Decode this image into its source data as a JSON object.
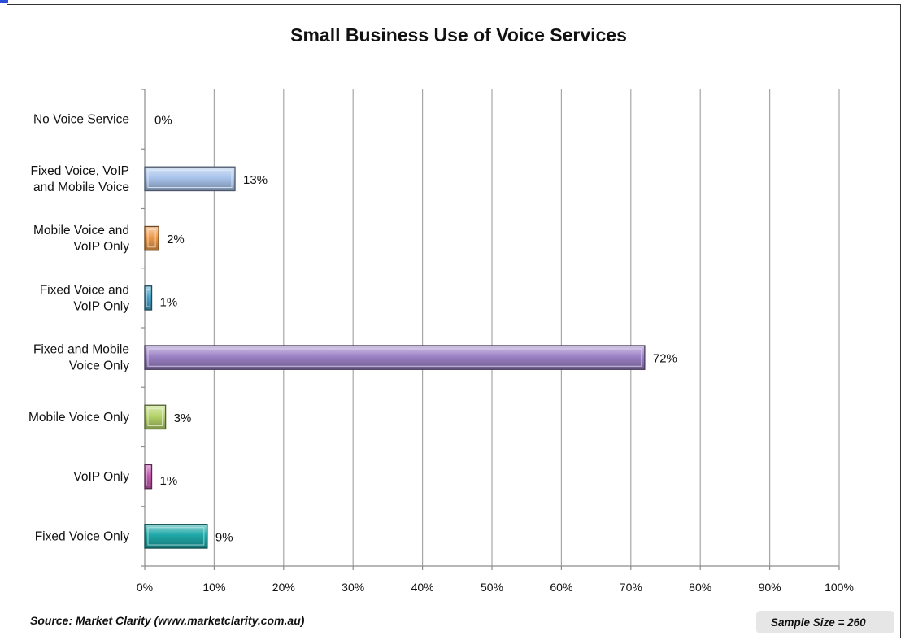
{
  "chart_data": {
    "type": "bar",
    "orientation": "horizontal",
    "title": "Small Business Use of Voice Services",
    "categories": [
      [
        "No Voice Service"
      ],
      [
        "Fixed Voice, VoIP",
        "and Mobile Voice"
      ],
      [
        "Mobile Voice and",
        "VoIP Only"
      ],
      [
        "Fixed Voice and",
        "VoIP Only"
      ],
      [
        "Fixed and Mobile",
        "Voice Only"
      ],
      [
        "Mobile Voice Only"
      ],
      [
        "VoIP Only"
      ],
      [
        "Fixed Voice Only"
      ]
    ],
    "values": [
      0,
      13,
      2,
      1,
      72,
      3,
      1,
      9
    ],
    "data_labels": [
      "0%",
      "13%",
      "2%",
      "1%",
      "72%",
      "3%",
      "1%",
      "9%"
    ],
    "bar_colors": [
      "#9dc3e6",
      "#a9c4ec",
      "#ef9a4a",
      "#4aa3c8",
      "#9c82c6",
      "#b5d46a",
      "#c45ab0",
      "#1fa8a8"
    ],
    "xlim": [
      0,
      100
    ],
    "xticks": [
      0,
      10,
      20,
      30,
      40,
      50,
      60,
      70,
      80,
      90,
      100
    ],
    "xtick_labels": [
      "0%",
      "10%",
      "20%",
      "30%",
      "40%",
      "50%",
      "60%",
      "70%",
      "80%",
      "90%",
      "100%"
    ],
    "grid": "vertical",
    "legend": "none"
  },
  "footer": {
    "source": "Source: Market Clarity (www.marketclarity.com.au)",
    "sample_size": "Sample Size = 260"
  }
}
